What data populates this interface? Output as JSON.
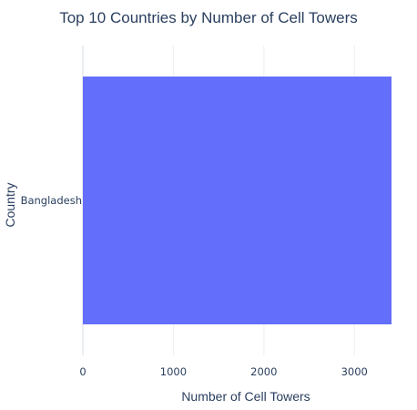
{
  "chart_data": {
    "type": "bar",
    "orientation": "horizontal",
    "title": "Top 10 Countries by Number of Cell Towers",
    "xlabel": "Number of Cell Towers",
    "ylabel": "Country",
    "categories": [
      "Bangladesh"
    ],
    "values": [
      3410
    ],
    "xlim": [
      0,
      3410
    ],
    "xticks": [
      0,
      1000,
      2000,
      3000
    ],
    "xtick_labels": [
      "0",
      "1000",
      "2000",
      "3000"
    ],
    "grid": true,
    "legend": "none",
    "bar_color": "#636efa"
  }
}
